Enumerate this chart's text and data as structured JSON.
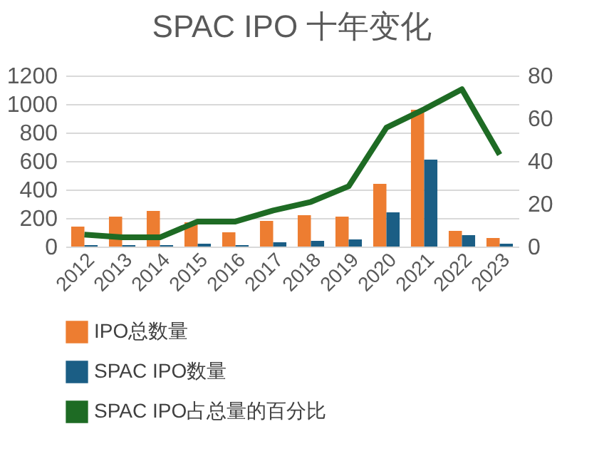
{
  "chart_data": {
    "type": "bar",
    "title": "SPAC IPO 十年变化",
    "categories": [
      "2012",
      "2013",
      "2014",
      "2015",
      "2016",
      "2017",
      "2018",
      "2019",
      "2020",
      "2021",
      "2022",
      "2023"
    ],
    "series": [
      {
        "name": "IPO总数量",
        "color": "#ed7d31",
        "values": [
          140,
          210,
          250,
          170,
          100,
          180,
          220,
          210,
          440,
          960,
          110,
          60
        ]
      },
      {
        "name": "SPAC IPO数量",
        "color": "#1b5e85",
        "values": [
          10,
          10,
          10,
          20,
          10,
          30,
          40,
          50,
          240,
          610,
          80,
          20
        ]
      },
      {
        "name": "SPAC IPO占总量的百分比",
        "type": "line",
        "axis": "y2",
        "color": "#1e6b24",
        "values": [
          5.6,
          4.3,
          4.3,
          11.7,
          11.7,
          16.9,
          20.9,
          28.2,
          55.6,
          64.2,
          73.6,
          43
        ]
      }
    ],
    "ylim": [
      0,
      1200
    ],
    "yticks": [
      0,
      200,
      400,
      600,
      800,
      1000,
      1200
    ],
    "y2lim": [
      0,
      80
    ],
    "y2ticks": [
      0,
      20,
      40,
      60,
      80
    ],
    "grid": "y",
    "legend": "bottom",
    "marker": "none",
    "line_style": "solid"
  }
}
